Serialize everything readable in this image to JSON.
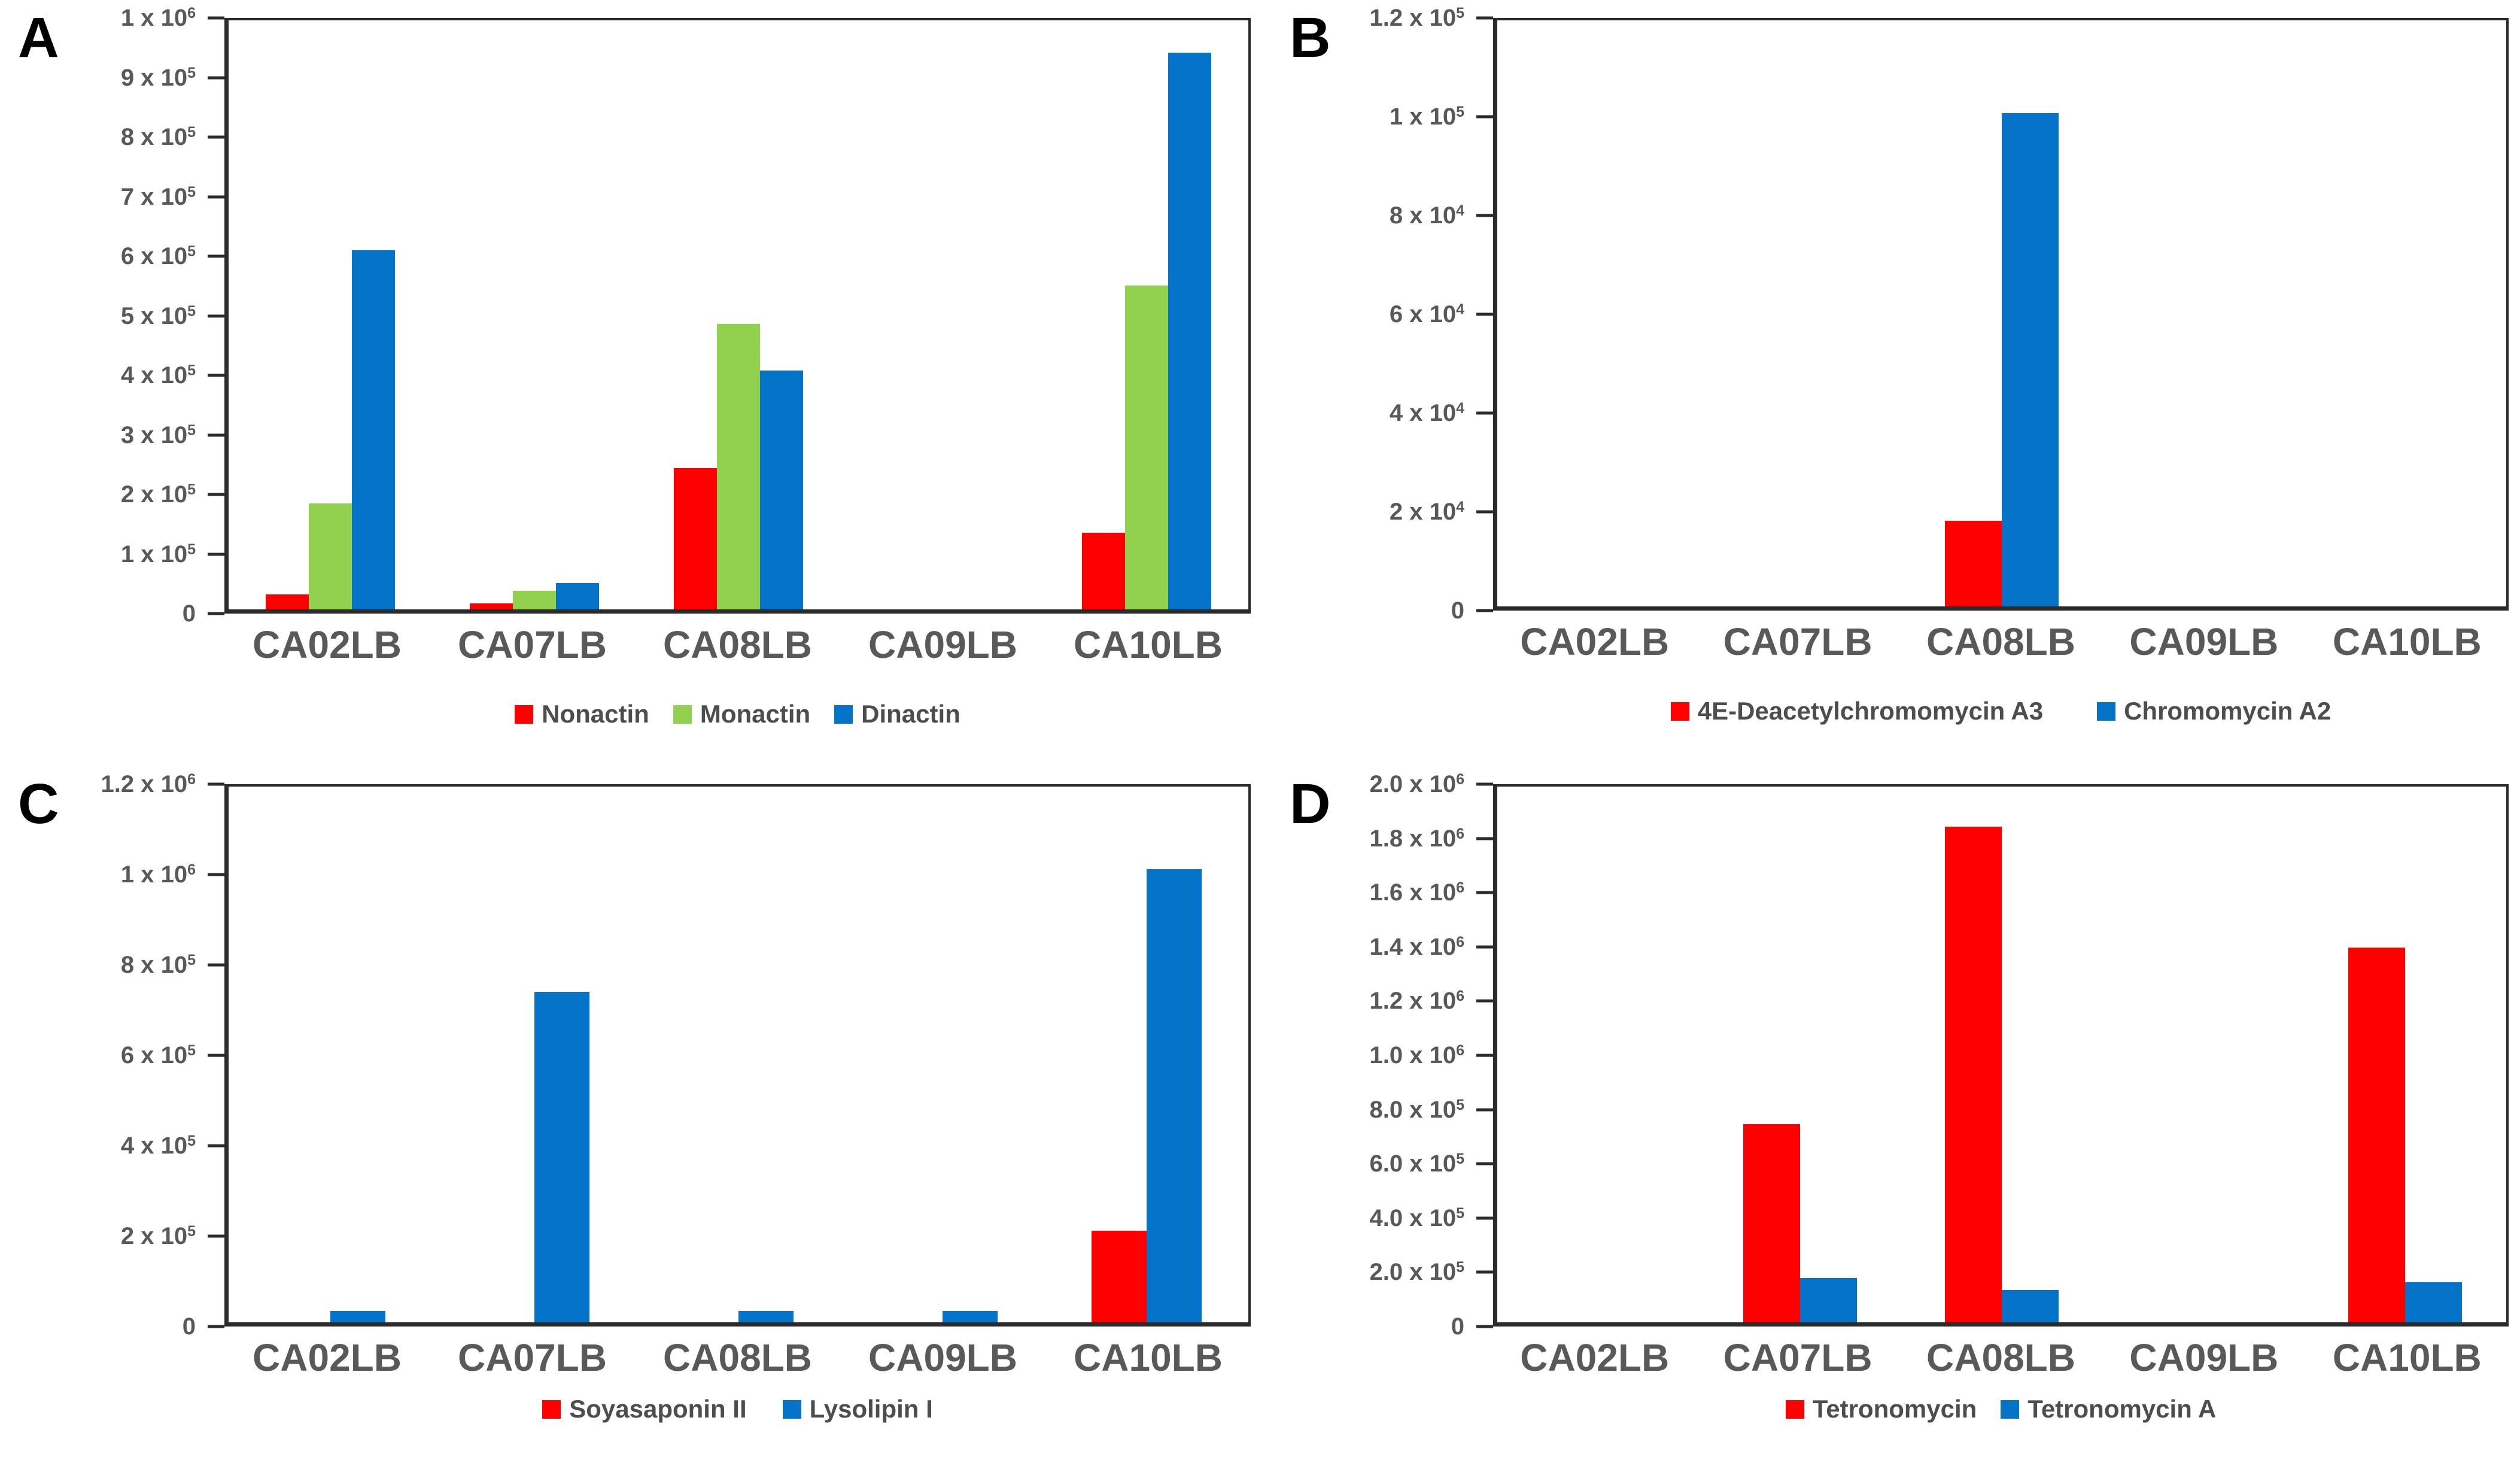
{
  "figure": {
    "background": "#ffffff",
    "axis_text_color": "#595959",
    "axis_line_color": "#2b2b2b",
    "legend_text_color": "#4d4d4d",
    "panel_letter_color": "#000000",
    "panel_letters": [
      "A",
      "B",
      "C",
      "D"
    ]
  },
  "chart_data": [
    {
      "type": "bar",
      "panel_label": "A",
      "categories": [
        "CA02LB",
        "CA07LB",
        "CA08LB",
        "CA09LB",
        "CA10LB"
      ],
      "series": [
        {
          "name": "Nonactin",
          "color": "#FF0000",
          "values": [
            25000,
            10000,
            240000,
            0,
            130000
          ]
        },
        {
          "name": "Monactin",
          "color": "#92D050",
          "values": [
            180000,
            32000,
            485000,
            0,
            550000
          ]
        },
        {
          "name": "Dinactin",
          "color": "#0473C8",
          "values": [
            610000,
            45000,
            405000,
            0,
            945000
          ]
        }
      ],
      "ylim": [
        0,
        1000000
      ],
      "yticks": [
        {
          "value": 0,
          "label": "0"
        },
        {
          "value": 100000,
          "label": "1 x 10^5"
        },
        {
          "value": 200000,
          "label": "2 x 10^5"
        },
        {
          "value": 300000,
          "label": "3 x 10^5"
        },
        {
          "value": 400000,
          "label": "4 x 10^5"
        },
        {
          "value": 500000,
          "label": "5 x 10^5"
        },
        {
          "value": 600000,
          "label": "6 x 10^5"
        },
        {
          "value": 700000,
          "label": "7 x 10^5"
        },
        {
          "value": 800000,
          "label": "8 x 10^5"
        },
        {
          "value": 900000,
          "label": "9 x 10^5"
        },
        {
          "value": 1000000,
          "label": "1 x 10^6"
        }
      ],
      "legend_position": "bottom",
      "grid": false
    },
    {
      "type": "bar",
      "panel_label": "B",
      "categories": [
        "CA02LB",
        "CA07LB",
        "CA08LB",
        "CA09LB",
        "CA10LB"
      ],
      "series": [
        {
          "name": "4E-Deacetylchromomycin A3",
          "color": "#FF0000",
          "values": [
            0,
            0,
            17500,
            0,
            0
          ]
        },
        {
          "name": "Chromomycin A2",
          "color": "#0473C8",
          "values": [
            0,
            0,
            101000,
            0,
            0
          ]
        }
      ],
      "ylim": [
        0,
        120000
      ],
      "yticks": [
        {
          "value": 0,
          "label": "0"
        },
        {
          "value": 20000,
          "label": "2 x 10^4"
        },
        {
          "value": 40000,
          "label": "4 x 10^4"
        },
        {
          "value": 60000,
          "label": "6 x 10^4"
        },
        {
          "value": 80000,
          "label": "8 x 10^4"
        },
        {
          "value": 100000,
          "label": "1 x 10^5"
        },
        {
          "value": 120000,
          "label": "1.2 x 10^5"
        }
      ],
      "legend_position": "bottom",
      "grid": false
    },
    {
      "type": "bar",
      "panel_label": "C",
      "categories": [
        "CA02LB",
        "CA07LB",
        "CA08LB",
        "CA09LB",
        "CA10LB"
      ],
      "series": [
        {
          "name": "Soyasaponin II",
          "color": "#FF0000",
          "values": [
            0,
            0,
            0,
            0,
            205000
          ]
        },
        {
          "name": "Lysolipin I",
          "color": "#0473C8",
          "values": [
            25000,
            740000,
            25000,
            25000,
            1015000
          ]
        }
      ],
      "ylim": [
        0,
        1200000
      ],
      "yticks": [
        {
          "value": 0,
          "label": "0"
        },
        {
          "value": 200000,
          "label": "2 x 10^5"
        },
        {
          "value": 400000,
          "label": "4 x 10^5"
        },
        {
          "value": 600000,
          "label": "6 x 10^5"
        },
        {
          "value": 800000,
          "label": "8 x 10^5"
        },
        {
          "value": 1000000,
          "label": "1 x 10^6"
        },
        {
          "value": 1200000,
          "label": "1.2 x 10^6"
        }
      ],
      "legend_position": "bottom",
      "grid": false
    },
    {
      "type": "bar",
      "panel_label": "D",
      "categories": [
        "CA02LB",
        "CA07LB",
        "CA08LB",
        "CA09LB",
        "CA10LB"
      ],
      "series": [
        {
          "name": "Tetronomycin",
          "color": "#FF0000",
          "values": [
            0,
            740000,
            1850000,
            0,
            1400000
          ]
        },
        {
          "name": "Tetronomycin A",
          "color": "#0473C8",
          "values": [
            0,
            165000,
            120000,
            0,
            150000
          ]
        }
      ],
      "ylim": [
        0,
        2000000
      ],
      "yticks": [
        {
          "value": 0,
          "label": "0"
        },
        {
          "value": 200000,
          "label": "2.0 x 10^5"
        },
        {
          "value": 400000,
          "label": "4.0 x 10^5"
        },
        {
          "value": 600000,
          "label": "6.0 x 10^5"
        },
        {
          "value": 800000,
          "label": "8.0 x 10^5"
        },
        {
          "value": 1000000,
          "label": "1.0 x 10^6"
        },
        {
          "value": 1200000,
          "label": "1.2 x 10^6"
        },
        {
          "value": 1400000,
          "label": "1.4 x 10^6"
        },
        {
          "value": 1600000,
          "label": "1.6 x 10^6"
        },
        {
          "value": 1800000,
          "label": "1.8 x 10^6"
        },
        {
          "value": 2000000,
          "label": "2.0 x 10^6"
        }
      ],
      "legend_position": "bottom",
      "grid": false
    }
  ]
}
